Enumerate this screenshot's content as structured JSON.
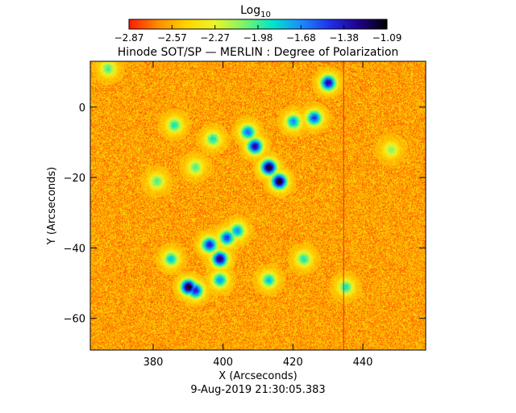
{
  "colorbar": {
    "label_main": "Log",
    "label_sub": "10",
    "ticks": [
      "−2.87",
      "−2.57",
      "−2.27",
      "−1.98",
      "−1.68",
      "−1.38",
      "−1.09"
    ],
    "colormap": [
      "#ff1a00",
      "#ff8c00",
      "#ffd400",
      "#ecf52a",
      "#7df56a",
      "#00e6c8",
      "#1a8cff",
      "#2030e8",
      "#20008c",
      "#000000"
    ]
  },
  "chart_data": {
    "type": "heatmap",
    "title": "Hinode SOT/SP — MERLIN : Degree of Polarization",
    "xlabel": "X (Arcseconds)",
    "ylabel": "Y (Arcseconds)",
    "xlim": [
      362,
      458
    ],
    "ylim": [
      -69,
      13
    ],
    "x_ticks": [
      380,
      400,
      420,
      440
    ],
    "y_ticks": [
      0,
      -20,
      -40,
      -60
    ],
    "y_tick_labels": [
      "0",
      "−20",
      "−40",
      "−60"
    ],
    "value_range_log10": [
      -2.87,
      -1.09
    ],
    "background_log10": -2.6,
    "features": [
      {
        "x": 409,
        "y": -11,
        "log10": -1.3
      },
      {
        "x": 413,
        "y": -17,
        "log10": -1.1
      },
      {
        "x": 416,
        "y": -21,
        "log10": -1.1
      },
      {
        "x": 407,
        "y": -7,
        "log10": -1.6
      },
      {
        "x": 420,
        "y": -4,
        "log10": -1.7
      },
      {
        "x": 426,
        "y": -3,
        "log10": -1.5
      },
      {
        "x": 430,
        "y": 7,
        "log10": -1.3
      },
      {
        "x": 399,
        "y": -43,
        "log10": -1.2
      },
      {
        "x": 396,
        "y": -39,
        "log10": -1.4
      },
      {
        "x": 401,
        "y": -37,
        "log10": -1.5
      },
      {
        "x": 404,
        "y": -35,
        "log10": -1.7
      },
      {
        "x": 390,
        "y": -51,
        "log10": -1.1
      },
      {
        "x": 392,
        "y": -52,
        "log10": -1.4
      },
      {
        "x": 399,
        "y": -49,
        "log10": -1.7
      },
      {
        "x": 385,
        "y": -43,
        "log10": -1.8
      },
      {
        "x": 386,
        "y": -5,
        "log10": -1.9
      },
      {
        "x": 397,
        "y": -9,
        "log10": -1.9
      },
      {
        "x": 392,
        "y": -17,
        "log10": -2.0
      },
      {
        "x": 381,
        "y": -21,
        "log10": -2.0
      },
      {
        "x": 413,
        "y": -49,
        "log10": -1.8
      },
      {
        "x": 423,
        "y": -43,
        "log10": -1.9
      },
      {
        "x": 448,
        "y": -12,
        "log10": -2.1
      },
      {
        "x": 367,
        "y": 11,
        "log10": -2.0
      },
      {
        "x": 435,
        "y": -51,
        "log10": -1.9
      }
    ],
    "vertical_line_x": 434.5,
    "grid": false,
    "date_label": "9-Aug-2019 21:30:05.383"
  }
}
